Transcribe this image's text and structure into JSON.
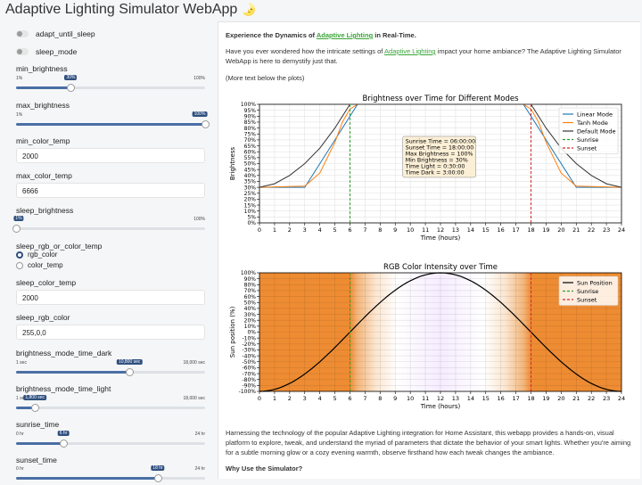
{
  "header": {
    "title": "Adaptive Lighting Simulator WebApp",
    "emoji": "🌛"
  },
  "sidebar": {
    "toggles": [
      {
        "label": "adapt_until_sleep"
      },
      {
        "label": "sleep_mode"
      }
    ],
    "min_brightness": {
      "label": "min_brightness",
      "min": "1%",
      "max": "100%",
      "value": "30%",
      "fraction": 0.29
    },
    "max_brightness": {
      "label": "max_brightness",
      "min": "1%",
      "max": "100%",
      "value": "100%",
      "fraction": 1.0
    },
    "min_color_temp": {
      "label": "min_color_temp",
      "value": "2000"
    },
    "max_color_temp": {
      "label": "max_color_temp",
      "value": "6666"
    },
    "sleep_brightness": {
      "label": "sleep_brightness",
      "min": "1%",
      "max": "100%",
      "value": "1%",
      "fraction": 0.0
    },
    "sleep_rgb_or_color_temp": {
      "label": "sleep_rgb_or_color_temp",
      "options": [
        "rgb_color",
        "color_temp"
      ],
      "selected": "rgb_color"
    },
    "sleep_color_temp": {
      "label": "sleep_color_temp",
      "value": "2000"
    },
    "sleep_rgb_color": {
      "label": "sleep_rgb_color",
      "value": "255,0,0"
    },
    "brightness_mode_time_dark": {
      "label": "brightness_mode_time_dark",
      "min": "1 sec",
      "max": "18,000 sec",
      "value": "10,800 sec",
      "fraction": 0.6
    },
    "brightness_mode_time_light": {
      "label": "brightness_mode_time_light",
      "min": "1 sec",
      "max": "18,000 sec",
      "value": "1,800 sec",
      "fraction": 0.1
    },
    "sunrise_time": {
      "label": "sunrise_time",
      "min": "0 hr",
      "max": "24 hr",
      "value": "6 hr",
      "fraction": 0.25
    },
    "sunset_time": {
      "label": "sunset_time",
      "min": "0 hr",
      "max": "24 hr",
      "value": "18 hr",
      "fraction": 0.75
    }
  },
  "main": {
    "intro_prefix": "Experience the Dynamics of ",
    "intro_link": "Adaptive Lighting",
    "intro_suffix": " in Real-Time.",
    "p1_prefix": "Have you ever wondered how the intricate settings of ",
    "p1_link": "Adaptive Lighting",
    "p1_suffix": " impact your home ambiance? The Adaptive Lighting Simulator WebApp is here to demystify just that.",
    "p2": "(More text below the plots)",
    "p3": "Harnessing the technology of the popular Adaptive Lighting integration for Home Assistant, this webapp provides a hands-on, visual platform to explore, tweak, and understand the myriad of parameters that dictate the behavior of your smart lights. Whether you're aiming for a subtle morning glow or a cozy evening warmth, observe firsthand how each tweak changes the ambiance.",
    "h_why": "Why Use the Simulator?"
  },
  "chart_data": [
    {
      "type": "line",
      "title": "Brightness over Time for Different Modes",
      "xlabel": "Time (hours)",
      "ylabel": "Brightness",
      "xlim": [
        0,
        24
      ],
      "ylim": [
        0,
        100
      ],
      "grid": true,
      "legend_position": "top-right",
      "x_ticks": [
        "0",
        "1",
        "2",
        "3",
        "4",
        "5",
        "6",
        "7",
        "8",
        "9",
        "10",
        "11",
        "12",
        "13",
        "14",
        "15",
        "16",
        "17",
        "18",
        "19",
        "20",
        "21",
        "22",
        "23",
        "24"
      ],
      "y_ticks": [
        "0%",
        "5%",
        "10%",
        "15%",
        "20%",
        "25%",
        "30%",
        "35%",
        "40%",
        "45%",
        "50%",
        "55%",
        "60%",
        "65%",
        "70%",
        "75%",
        "80%",
        "85%",
        "90%",
        "95%",
        "100%"
      ],
      "series": [
        {
          "name": "Linear Mode",
          "color": "#1f77b4",
          "x": [
            0,
            3,
            6.5,
            17.5,
            21,
            24
          ],
          "y": [
            30,
            30,
            100,
            100,
            30,
            30
          ]
        },
        {
          "name": "Tanh Mode",
          "color": "#ff7f0e",
          "x": [
            0,
            3,
            4,
            5,
            5.5,
            6,
            6.5,
            17.5,
            18,
            18.5,
            19,
            20,
            21,
            24
          ],
          "y": [
            30,
            31,
            42,
            68,
            85,
            96,
            100,
            100,
            96,
            85,
            68,
            42,
            31,
            30
          ]
        },
        {
          "name": "Default Mode",
          "color": "#333333",
          "x": [
            0,
            1,
            2,
            3,
            4,
            5,
            6,
            18,
            19,
            20,
            21,
            22,
            23,
            24
          ],
          "y": [
            30,
            33,
            40,
            50,
            63,
            80,
            100,
            100,
            80,
            63,
            50,
            40,
            33,
            30
          ]
        },
        {
          "name": "Sunrise",
          "color": "#2ca02c",
          "dashed": true,
          "vline": 6
        },
        {
          "name": "Sunset",
          "color": "#d62728",
          "dashed": true,
          "vline": 18
        }
      ],
      "annotation": [
        "Sunrise Time = 06:00:00",
        "Sunset Time = 18:00:00",
        "Max Brightness = 100%",
        "Min Brightness = 30%",
        "Time Light = 0:30:00",
        "Time Dark = 3:00:00"
      ]
    },
    {
      "type": "line",
      "title": "RGB Color Intensity over Time",
      "xlabel": "Time (hours)",
      "ylabel": "Sun position (%)",
      "xlim": [
        0,
        24
      ],
      "ylim": [
        -100,
        100
      ],
      "grid": true,
      "legend_position": "top-right",
      "x_ticks": [
        "0",
        "1",
        "2",
        "3",
        "4",
        "5",
        "6",
        "7",
        "8",
        "9",
        "10",
        "11",
        "12",
        "13",
        "14",
        "15",
        "16",
        "17",
        "18",
        "19",
        "20",
        "21",
        "22",
        "23",
        "24"
      ],
      "y_ticks": [
        "-100%",
        "-90%",
        "-80%",
        "-70%",
        "-60%",
        "-50%",
        "-40%",
        "-30%",
        "-20%",
        "-10%",
        "0%",
        "10%",
        "20%",
        "30%",
        "40%",
        "50%",
        "60%",
        "70%",
        "80%",
        "90%",
        "100%"
      ],
      "series": [
        {
          "name": "Sun Position",
          "color": "#000000",
          "function": "-cos(2*pi*t/24)"
        },
        {
          "name": "Sunrise",
          "color": "#2ca02c",
          "dashed": true,
          "vline": 6
        },
        {
          "name": "Sunset",
          "color": "#d62728",
          "dashed": true,
          "vline": 18
        }
      ],
      "background_colors": {
        "night": "#ee8c33",
        "day": "#ffffff",
        "noon_tint": "#f6ecff"
      }
    }
  ]
}
